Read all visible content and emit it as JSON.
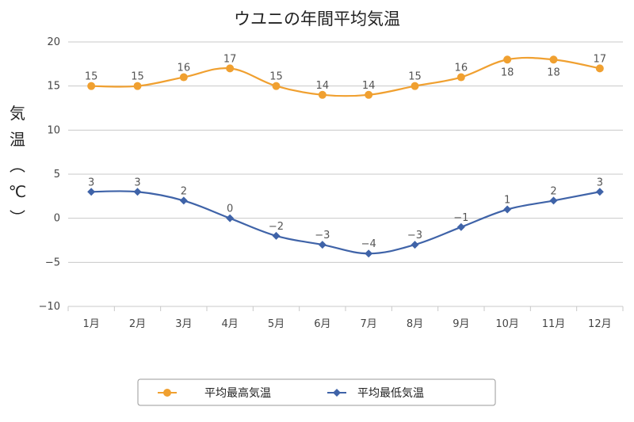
{
  "chart_data": {
    "type": "line",
    "title": "ウユニの年間平均気温",
    "ylabel": "気温（℃）",
    "xlabel": "",
    "categories": [
      "1月",
      "2月",
      "3月",
      "4月",
      "5月",
      "6月",
      "7月",
      "8月",
      "9月",
      "10月",
      "11月",
      "12月"
    ],
    "ylim": [
      -10,
      20
    ],
    "yticks": [
      20,
      15,
      10,
      5,
      0,
      -5,
      -10
    ],
    "ytick_labels": [
      "20",
      "15",
      "10",
      "5",
      "0",
      "−5",
      "−10"
    ],
    "grid": true,
    "legend_position": "bottom",
    "series": [
      {
        "name": "平均最高気温",
        "color": "#f0a030",
        "marker": "circle",
        "values": [
          15,
          15,
          16,
          17,
          15,
          14,
          14,
          15,
          16,
          18,
          18,
          17
        ]
      },
      {
        "name": "平均最低気温",
        "color": "#3f63a8",
        "marker": "diamond",
        "values": [
          3,
          3,
          2,
          0,
          -2,
          -3,
          -4,
          -3,
          -1,
          1,
          2,
          3
        ],
        "labels": [
          "3",
          "3",
          "2",
          "0",
          "−2",
          "−3",
          "−4",
          "−3",
          "−1",
          "1",
          "2",
          "3"
        ]
      }
    ]
  }
}
